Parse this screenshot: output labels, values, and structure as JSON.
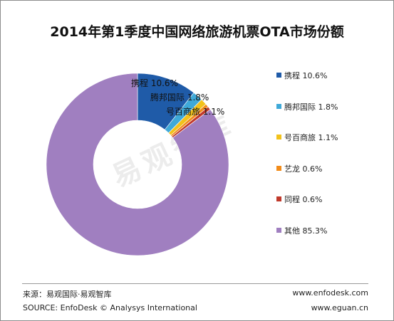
{
  "chart_data": {
    "type": "pie",
    "title": "2014年第1季度中国网络旅游机票OTA市场份额",
    "categories": [
      "携程",
      "腾邦国际",
      "号百商旅",
      "艺龙",
      "同程",
      "其他"
    ],
    "values": [
      10.6,
      1.8,
      1.1,
      0.6,
      0.6,
      85.3
    ],
    "value_labels": [
      "10.6%",
      "1.8%",
      "1.1%",
      "0.6%",
      "0.6%",
      "85.3%"
    ],
    "colors": [
      "#1f5ba8",
      "#3fa9d8",
      "#f2c21b",
      "#f28c1a",
      "#c0392b",
      "#a07fc0"
    ],
    "legend_position": "right",
    "donut": true
  },
  "watermark": "易观智库",
  "footer": {
    "source_cn": "来源：易观国际·易观智库",
    "source_en": "SOURCE: EnfoDesk © Analysys International",
    "url_1": "www.enfodesk.com",
    "url_2": "www.eguan.cn"
  }
}
